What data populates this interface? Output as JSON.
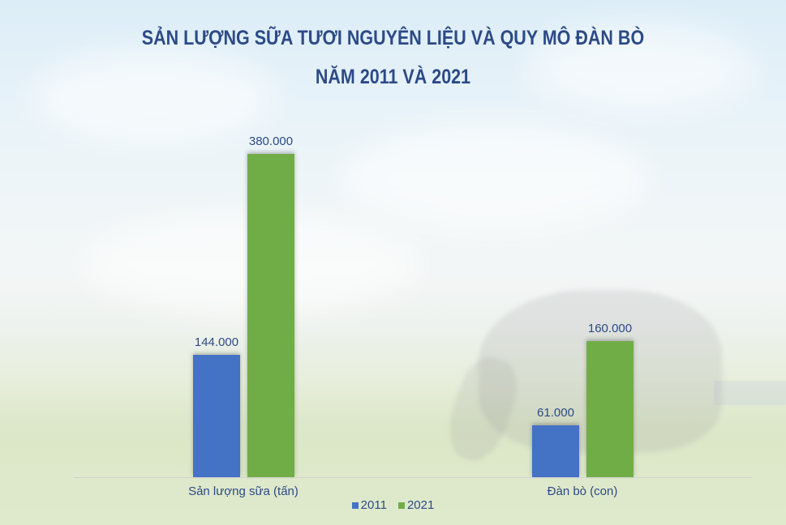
{
  "title": {
    "line1": "SẢN LƯỢNG SỮA TƯƠI NGUYÊN LIỆU VÀ QUY MÔ ĐÀN BÒ",
    "line2": "NĂM 2011 VÀ 2021"
  },
  "colors": {
    "series_2011": "#4472c4",
    "series_2021": "#70ad47",
    "text": "#2c4a86"
  },
  "groups": [
    {
      "category": "Sản lượng sữa (tấn)",
      "bars": [
        {
          "series": "2011",
          "value": 144000,
          "label": "144.000"
        },
        {
          "series": "2021",
          "value": 380000,
          "label": "380.000"
        }
      ]
    },
    {
      "category": "Đàn bò (con)",
      "bars": [
        {
          "series": "2011",
          "value": 61000,
          "label": "61.000"
        },
        {
          "series": "2021",
          "value": 160000,
          "label": "160.000"
        }
      ]
    }
  ],
  "legend": [
    {
      "label": "2011",
      "color": "#4472c4"
    },
    {
      "label": "2021",
      "color": "#70ad47"
    }
  ],
  "chart_data": {
    "type": "bar",
    "title": "SẢN LƯỢNG SỮA TƯƠI NGUYÊN LIỆU VÀ QUY MÔ ĐÀN BÒ NĂM 2011 VÀ 2021",
    "categories": [
      "Sản lượng sữa (tấn)",
      "Đàn bò (con)"
    ],
    "series": [
      {
        "name": "2011",
        "values": [
          144000,
          61000
        ],
        "color": "#4472c4"
      },
      {
        "name": "2021",
        "values": [
          380000,
          160000
        ],
        "color": "#70ad47"
      }
    ],
    "data_labels": [
      [
        "144.000",
        "61.000"
      ],
      [
        "380.000",
        "160.000"
      ]
    ],
    "xlabel": "",
    "ylabel": "",
    "yaxis_visible": false,
    "grid": false,
    "legend_position": "bottom"
  }
}
